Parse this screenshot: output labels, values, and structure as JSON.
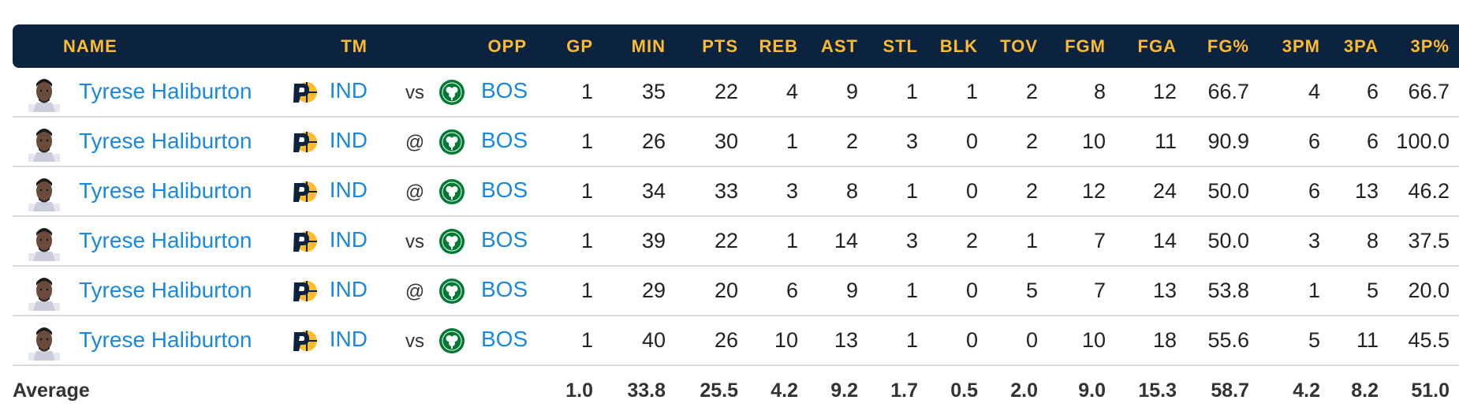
{
  "colors": {
    "header_bg": "#0c2340",
    "header_text": "#fdbb30",
    "link": "#1a88e0",
    "row_divider": "#d9d9d9",
    "ind_logo": "#fdbb30",
    "bos_logo": "#007a33"
  },
  "headers": {
    "name": "NAME",
    "tm": "TM",
    "opp": "OPP",
    "gp": "GP",
    "min": "MIN",
    "pts": "PTS",
    "reb": "REB",
    "ast": "AST",
    "stl": "STL",
    "blk": "BLK",
    "tov": "TOV",
    "fgm": "FGM",
    "fga": "FGA",
    "fg_pct": "FG%",
    "tpm": "3PM",
    "tpa": "3PA",
    "tp_pct": "3P%"
  },
  "rows": [
    {
      "player": "Tyrese Haliburton",
      "tm": "IND",
      "loc": "vs",
      "opp": "BOS",
      "gp": "1",
      "min": "35",
      "pts": "22",
      "reb": "4",
      "ast": "9",
      "stl": "1",
      "blk": "1",
      "tov": "2",
      "fgm": "8",
      "fga": "12",
      "fg_pct": "66.7",
      "tpm": "4",
      "tpa": "6",
      "tp_pct": "66.7"
    },
    {
      "player": "Tyrese Haliburton",
      "tm": "IND",
      "loc": "@",
      "opp": "BOS",
      "gp": "1",
      "min": "26",
      "pts": "30",
      "reb": "1",
      "ast": "2",
      "stl": "3",
      "blk": "0",
      "tov": "2",
      "fgm": "10",
      "fga": "11",
      "fg_pct": "90.9",
      "tpm": "6",
      "tpa": "6",
      "tp_pct": "100.0"
    },
    {
      "player": "Tyrese Haliburton",
      "tm": "IND",
      "loc": "@",
      "opp": "BOS",
      "gp": "1",
      "min": "34",
      "pts": "33",
      "reb": "3",
      "ast": "8",
      "stl": "1",
      "blk": "0",
      "tov": "2",
      "fgm": "12",
      "fga": "24",
      "fg_pct": "50.0",
      "tpm": "6",
      "tpa": "13",
      "tp_pct": "46.2"
    },
    {
      "player": "Tyrese Haliburton",
      "tm": "IND",
      "loc": "vs",
      "opp": "BOS",
      "gp": "1",
      "min": "39",
      "pts": "22",
      "reb": "1",
      "ast": "14",
      "stl": "3",
      "blk": "2",
      "tov": "1",
      "fgm": "7",
      "fga": "14",
      "fg_pct": "50.0",
      "tpm": "3",
      "tpa": "8",
      "tp_pct": "37.5"
    },
    {
      "player": "Tyrese Haliburton",
      "tm": "IND",
      "loc": "@",
      "opp": "BOS",
      "gp": "1",
      "min": "29",
      "pts": "20",
      "reb": "6",
      "ast": "9",
      "stl": "1",
      "blk": "0",
      "tov": "5",
      "fgm": "7",
      "fga": "13",
      "fg_pct": "53.8",
      "tpm": "1",
      "tpa": "5",
      "tp_pct": "20.0"
    },
    {
      "player": "Tyrese Haliburton",
      "tm": "IND",
      "loc": "vs",
      "opp": "BOS",
      "gp": "1",
      "min": "40",
      "pts": "26",
      "reb": "10",
      "ast": "13",
      "stl": "1",
      "blk": "0",
      "tov": "0",
      "fgm": "10",
      "fga": "18",
      "fg_pct": "55.6",
      "tpm": "5",
      "tpa": "11",
      "tp_pct": "45.5"
    }
  ],
  "average": {
    "label": "Average",
    "gp": "1.0",
    "min": "33.8",
    "pts": "25.5",
    "reb": "4.2",
    "ast": "9.2",
    "stl": "1.7",
    "blk": "0.5",
    "tov": "2.0",
    "fgm": "9.0",
    "fga": "15.3",
    "fg_pct": "58.7",
    "tpm": "4.2",
    "tpa": "8.2",
    "tp_pct": "51.0"
  }
}
